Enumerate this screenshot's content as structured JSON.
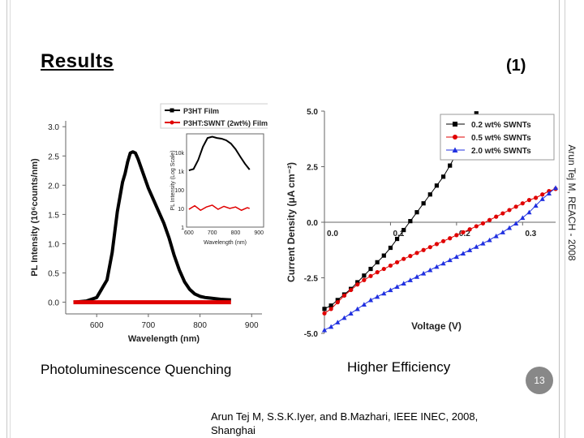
{
  "slide": {
    "title": "Results",
    "number_label": "(1)",
    "side_text": "Arun Tej M, REACH - 2008",
    "caption_left": "Photoluminescence Quenching",
    "caption_right": "Higher Efficiency",
    "reference": "Arun Tej M, S.S.K.Iyer, and B.Mazhari, IEEE INEC, 2008, Shanghai",
    "page_number": "13"
  },
  "chart_data": [
    {
      "type": "line",
      "xlabel": "Wavelength (nm)",
      "ylabel": "PL Intensity (10⁶counts/nm)",
      "xlim": [
        540,
        920
      ],
      "ylim": [
        -0.2,
        3.1
      ],
      "xticks": [
        "600",
        "700",
        "800",
        "900"
      ],
      "yticks": [
        "0.0",
        "0.5",
        "1.0",
        "1.5",
        "2.0",
        "2.5",
        "3.0"
      ],
      "legend": [
        "P3HT Film",
        "P3HT:SWNT (2wt%) Film"
      ],
      "colors": [
        "#000000",
        "#e00000"
      ],
      "series": [
        {
          "name": "P3HT Film",
          "x": [
            555,
            580,
            600,
            620,
            630,
            640,
            650,
            655,
            660,
            665,
            670,
            675,
            680,
            690,
            700,
            710,
            720,
            730,
            740,
            750,
            760,
            770,
            780,
            790,
            800,
            810,
            820,
            830,
            840,
            860
          ],
          "y": [
            0.0,
            0.02,
            0.08,
            0.38,
            0.85,
            1.55,
            2.05,
            2.2,
            2.4,
            2.55,
            2.57,
            2.55,
            2.45,
            2.2,
            1.95,
            1.75,
            1.55,
            1.35,
            1.1,
            0.8,
            0.55,
            0.35,
            0.22,
            0.14,
            0.1,
            0.08,
            0.07,
            0.06,
            0.05,
            0.04
          ]
        },
        {
          "name": "P3HT:SWNT (2wt%) Film",
          "x": [
            555,
            600,
            650,
            700,
            750,
            800,
            860
          ],
          "y": [
            0.0,
            0.0,
            0.0,
            0.0,
            0.0,
            0.0,
            0.0
          ]
        }
      ],
      "inset": {
        "xlabel": "Wavelength (nm)",
        "ylabel": "PL Intensity (Log Scale)",
        "xticks": [
          "600",
          "700",
          "800",
          "900"
        ],
        "yticks": [
          "1",
          "10",
          "100",
          "1k",
          "10k"
        ],
        "series": [
          {
            "name": "P3HT Film",
            "x": [
              600,
              620,
              640,
              660,
              680,
              700,
              720,
              740,
              760,
              780,
              800,
              820,
              840,
              860
            ],
            "y": [
              1100,
              1300,
              4000,
              20000,
              60000,
              70000,
              60000,
              55000,
              45000,
              30000,
              15000,
              6000,
              2500,
              1200
            ]
          },
          {
            "name": "P3HT:SWNT (2wt%) Film",
            "x": [
              600,
              625,
              650,
              675,
              700,
              725,
              750,
              775,
              800,
              825,
              850,
              860
            ],
            "y": [
              9,
              14,
              8,
              12,
              15,
              9,
              13,
              10,
              12,
              8,
              11,
              10
            ]
          }
        ]
      }
    },
    {
      "type": "line",
      "xlabel": "Voltage (V)",
      "ylabel": "Current Density (μA cm⁻²)",
      "xlim": [
        0,
        0.35
      ],
      "ylim": [
        -5.0,
        5.0
      ],
      "xticks": [
        "0.0",
        "0.1",
        "0.2",
        "0.3"
      ],
      "yticks": [
        "5.0",
        "2.5",
        "0.0",
        "-2.5",
        "-5.0"
      ],
      "legend": [
        "0.2 wt% SWNTs",
        "0.5 wt% SWNTs",
        "2.0 wt% SWNTs"
      ],
      "colors": [
        "#000000",
        "#e00000",
        "#2030e0"
      ],
      "series": [
        {
          "name": "0.2 wt% SWNTs",
          "x": [
            0,
            0.01,
            0.02,
            0.03,
            0.04,
            0.05,
            0.06,
            0.07,
            0.08,
            0.09,
            0.1,
            0.11,
            0.12,
            0.13,
            0.14,
            0.15,
            0.16,
            0.17,
            0.18,
            0.19,
            0.2,
            0.21,
            0.22,
            0.23
          ],
          "y": [
            -3.9,
            -3.75,
            -3.5,
            -3.25,
            -3.0,
            -2.7,
            -2.4,
            -2.1,
            -1.8,
            -1.5,
            -1.15,
            -0.75,
            -0.35,
            0.05,
            0.45,
            0.85,
            1.25,
            1.65,
            2.05,
            2.55,
            3.1,
            3.65,
            4.3,
            4.9
          ]
        },
        {
          "name": "0.5 wt% SWNTs",
          "x": [
            0,
            0.01,
            0.02,
            0.03,
            0.04,
            0.05,
            0.06,
            0.07,
            0.08,
            0.09,
            0.1,
            0.11,
            0.12,
            0.13,
            0.14,
            0.15,
            0.16,
            0.17,
            0.18,
            0.19,
            0.2,
            0.21,
            0.22,
            0.23,
            0.24,
            0.25,
            0.26,
            0.27,
            0.28,
            0.29,
            0.3,
            0.31,
            0.32,
            0.33,
            0.34,
            0.35
          ],
          "y": [
            -4.1,
            -3.9,
            -3.6,
            -3.3,
            -3.05,
            -2.8,
            -2.6,
            -2.42,
            -2.25,
            -2.1,
            -1.95,
            -1.8,
            -1.65,
            -1.52,
            -1.38,
            -1.25,
            -1.12,
            -0.98,
            -0.85,
            -0.72,
            -0.58,
            -0.45,
            -0.32,
            -0.18,
            -0.05,
            0.1,
            0.25,
            0.4,
            0.55,
            0.7,
            0.85,
            1.0,
            1.1,
            1.25,
            1.4,
            1.5
          ]
        },
        {
          "name": "2.0 wt% SWNTs",
          "x": [
            0,
            0.01,
            0.02,
            0.03,
            0.04,
            0.05,
            0.06,
            0.07,
            0.08,
            0.09,
            0.1,
            0.11,
            0.12,
            0.13,
            0.14,
            0.15,
            0.16,
            0.17,
            0.18,
            0.19,
            0.2,
            0.21,
            0.22,
            0.23,
            0.24,
            0.25,
            0.26,
            0.27,
            0.28,
            0.29,
            0.3,
            0.31,
            0.32,
            0.33,
            0.34,
            0.35
          ],
          "y": [
            -4.85,
            -4.7,
            -4.5,
            -4.3,
            -4.1,
            -3.9,
            -3.7,
            -3.5,
            -3.35,
            -3.2,
            -3.05,
            -2.9,
            -2.75,
            -2.6,
            -2.45,
            -2.3,
            -2.15,
            -2.0,
            -1.85,
            -1.7,
            -1.55,
            -1.4,
            -1.25,
            -1.1,
            -0.95,
            -0.8,
            -0.62,
            -0.45,
            -0.25,
            -0.05,
            0.2,
            0.45,
            0.75,
            1.05,
            1.3,
            1.55
          ]
        }
      ]
    }
  ]
}
